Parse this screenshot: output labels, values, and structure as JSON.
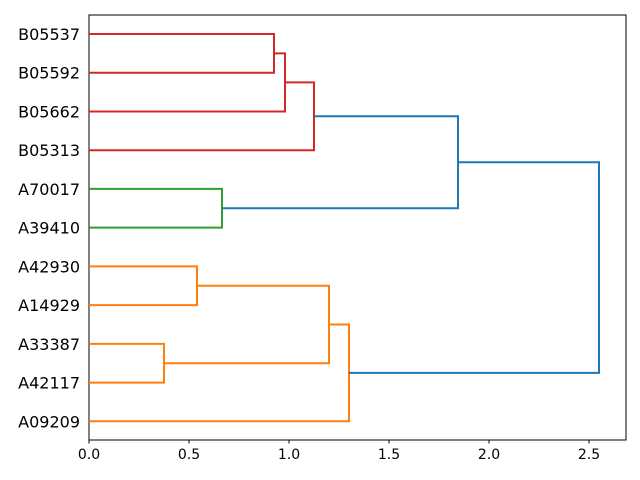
{
  "figure": {
    "background": "#ffffff",
    "axis_color": "#000000",
    "label_color": "#000000"
  },
  "chart_data": {
    "type": "dendrogram",
    "orientation": "right",
    "title": "",
    "xlabel": "",
    "ylabel": "",
    "xlim": [
      0,
      2.685
    ],
    "grid": false,
    "x_ticks": {
      "values": [
        0,
        0.5,
        1.0,
        1.5,
        2.0,
        2.5
      ],
      "labels": [
        "0.0",
        "0.5",
        "1.0",
        "1.5",
        "2.0",
        "2.5"
      ]
    },
    "leaves": [
      "B05537",
      "B05592",
      "B05662",
      "B05313",
      "A70017",
      "A39410",
      "A42930",
      "A14929",
      "A33387",
      "A42117",
      "A09209"
    ],
    "links": [
      {
        "id": "R1",
        "a": "B05537",
        "b": "B05592",
        "height": 0.925,
        "color": "#d62728"
      },
      {
        "id": "R2",
        "a": "R1",
        "b": "B05662",
        "height": 0.98,
        "color": "#d62728"
      },
      {
        "id": "R3",
        "a": "R2",
        "b": "B05313",
        "height": 1.125,
        "color": "#d62728"
      },
      {
        "id": "G1",
        "a": "A70017",
        "b": "A39410",
        "height": 0.665,
        "color": "#2ca02c"
      },
      {
        "id": "O1",
        "a": "A42930",
        "b": "A14929",
        "height": 0.54,
        "color": "#ff7f0e"
      },
      {
        "id": "O2",
        "a": "A33387",
        "b": "A42117",
        "height": 0.375,
        "color": "#ff7f0e"
      },
      {
        "id": "O3",
        "a": "O1",
        "b": "O2",
        "height": 1.2,
        "color": "#ff7f0e"
      },
      {
        "id": "O4",
        "a": "O3",
        "b": "A09209",
        "height": 1.3,
        "color": "#ff7f0e"
      },
      {
        "id": "B1",
        "a": "R3",
        "b": "G1",
        "height": 1.845,
        "color": "#1f77b4"
      },
      {
        "id": "B2",
        "a": "B1",
        "b": "O4",
        "height": 2.55,
        "color": "#1f77b4"
      }
    ],
    "colors": {
      "above_threshold_link": "#1f77b4",
      "cluster_red": "#d62728",
      "cluster_green": "#2ca02c",
      "cluster_orange": "#ff7f0e"
    }
  }
}
